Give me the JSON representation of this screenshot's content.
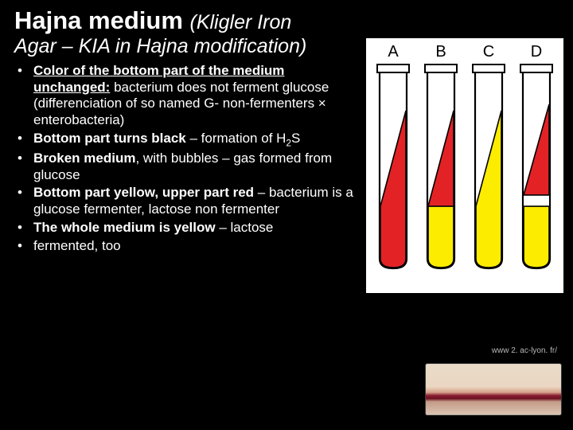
{
  "title": {
    "main": "Hajna medium ",
    "italic_line1": "(Kligler Iron",
    "italic_line2": "Agar – KIA in Hajna modification)"
  },
  "bullets": [
    {
      "bold_underline": "Color of the bottom part of the medium unchanged:",
      "rest": " bacterium does not ferment glucose (differenciation of so named G- non-fermenters × enterobacteria)"
    },
    {
      "bold": "Bottom part turns black",
      "rest": " – formation of H",
      "sub": "2",
      "tail": "S"
    },
    {
      "bold": "Broken medium",
      "rest": ", with bubbles – gas formed from glucose"
    },
    {
      "bold": "Bottom part yellow, upper part red",
      "rest": " – bacterium is a glucose fermenter, lactose non fermenter"
    },
    {
      "bold": "The whole medium is yellow",
      "rest": " – lactose"
    },
    {
      "plain": "fermented, too"
    }
  ],
  "tubes": {
    "labels": [
      "A",
      "B",
      "C",
      "D"
    ],
    "outline": "#000000",
    "background": "#ffffff",
    "items": [
      {
        "top_fill": "#e32226",
        "bottom_fill": "#e32226",
        "slant_separate": false
      },
      {
        "top_fill": "#e32226",
        "bottom_fill": "#fcec00",
        "slant_separate": true
      },
      {
        "top_fill": "#fcec00",
        "bottom_fill": "#fcec00",
        "slant_separate": false
      },
      {
        "top_fill": "#e32226",
        "bottom_fill": "#fcec00",
        "slant_separate": true,
        "broken": true
      }
    ]
  },
  "citation": "www 2. ac-lyon. fr/",
  "colors": {
    "page_bg": "#000000",
    "text": "#ffffff",
    "red": "#e32226",
    "yellow": "#fcec00"
  }
}
